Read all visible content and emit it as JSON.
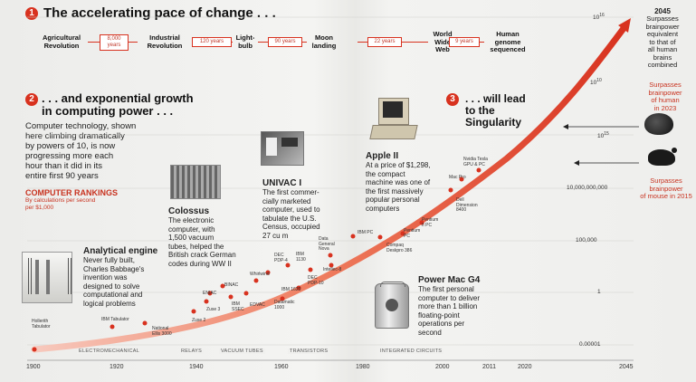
{
  "colors": {
    "accent": "#d8321f",
    "text": "#222222",
    "muted": "#666666"
  },
  "section1": {
    "number": "1",
    "title": "The accelerating pace of change . . .",
    "milestones": [
      {
        "line1": "Agricultural",
        "line2": "Revolution",
        "line3": ""
      },
      {
        "line1": "Industrial",
        "line2": "Revolution",
        "line3": ""
      },
      {
        "line1": "Light-",
        "line2": "bulb",
        "line3": ""
      },
      {
        "line1": "Moon",
        "line2": "landing",
        "line3": ""
      },
      {
        "line1": "World",
        "line2": "Wide",
        "line3": "Web"
      },
      {
        "line1": "Human",
        "line2": "genome",
        "line3": "sequenced"
      }
    ],
    "gaps": [
      {
        "line1": "8,000",
        "line2": "years"
      },
      {
        "line1": "120 years",
        "line2": ""
      },
      {
        "line1": "90 years",
        "line2": ""
      },
      {
        "line1": "22 years",
        "line2": ""
      },
      {
        "line1": "9 years",
        "line2": ""
      }
    ]
  },
  "section2": {
    "number": "2",
    "title_line1": ". . . and exponential growth",
    "title_line2": "in computing power . . .",
    "body": [
      "Computer technology, shown",
      "here climbing dramatically",
      "by powers of 10, is now",
      "progressing more each",
      "hour than it did in its",
      "entire first 90 years"
    ]
  },
  "section3": {
    "number": "3",
    "title_line1": ". . . will lead",
    "title_line2": "to the",
    "title_line3": "Singularity"
  },
  "rankings": {
    "title": "COMPUTER RANKINGS",
    "subtitle_line1": "By calculations per second",
    "subtitle_line2": "per $1,000"
  },
  "callouts": {
    "analytical": {
      "title": "Analytical engine",
      "lines": [
        "Never fully built,",
        "Charles Babbage's",
        "invention was",
        "designed to solve",
        "computational and",
        "logical problems"
      ]
    },
    "colossus": {
      "title": "Colossus",
      "lines": [
        "The electronic",
        "computer, with",
        "1,500 vacuum",
        "tubes, helped the",
        "British crack German",
        "codes during WW II"
      ]
    },
    "univac": {
      "title": "UNIVAC I",
      "lines": [
        "The first commer-",
        "cially marketed",
        "computer, used to",
        "tabulate the U.S.",
        "Census, occupied",
        "27 cu m"
      ]
    },
    "apple": {
      "title": "Apple II",
      "lines": [
        "At a price of $1,298,",
        "the compact",
        "machine was one of",
        "the first massively",
        "popular personal",
        "computers"
      ]
    },
    "powermac": {
      "title": "Power Mac G4",
      "lines": [
        "The first personal",
        "computer to deliver",
        "more than 1 billion",
        "floating-point",
        "operations per",
        "second"
      ]
    },
    "y2045": {
      "title": "2045",
      "lines": [
        "Surpasses",
        "brainpower",
        "equivalent",
        "to that of",
        "all human",
        "brains",
        "combined"
      ]
    },
    "human2023": {
      "lines": [
        "Surpasses",
        "brainpower",
        "of human",
        "in 2023"
      ]
    },
    "mouse2015": {
      "lines": [
        "Surpasses",
        "brainpower",
        "of mouse in 2015"
      ]
    }
  },
  "machines": [
    {
      "lines": [
        "Hollerith",
        "Tabulator"
      ]
    },
    {
      "lines": [
        "IBM Tabulator"
      ]
    },
    {
      "lines": [
        "National",
        "Ellis 3000"
      ]
    },
    {
      "lines": [
        "Zuse 2"
      ]
    },
    {
      "lines": [
        "Zuse 3"
      ]
    },
    {
      "lines": [
        "ENIAC"
      ]
    },
    {
      "lines": [
        "BINAC"
      ]
    },
    {
      "lines": [
        "IBM",
        "SSEC"
      ]
    },
    {
      "lines": [
        "EDVAC"
      ]
    },
    {
      "lines": [
        "Whirlwind"
      ]
    },
    {
      "lines": [
        "DEC",
        "PDP-4"
      ]
    },
    {
      "lines": [
        "IBM",
        "1130"
      ]
    },
    {
      "lines": [
        "IBM 1620"
      ]
    },
    {
      "lines": [
        "Datamatic",
        "1000"
      ]
    },
    {
      "lines": [
        "DEC",
        "PDP-10"
      ]
    },
    {
      "lines": [
        "Data",
        "General",
        "Nova"
      ]
    },
    {
      "lines": [
        "Intellec-8"
      ]
    },
    {
      "lines": [
        "IBM PC"
      ]
    },
    {
      "lines": [
        "Compaq",
        "Deskpro 386"
      ]
    },
    {
      "lines": [
        "Pentium",
        "PC"
      ]
    },
    {
      "lines": [
        "Pentium",
        "II PC"
      ]
    },
    {
      "lines": [
        "Dell",
        "Dimension",
        "8400"
      ]
    },
    {
      "lines": [
        "Mac Pro"
      ]
    },
    {
      "lines": [
        "Nvidia Tesla",
        "GPU & PC"
      ]
    }
  ],
  "yaxis": [
    {
      "label": "10",
      "sup": "16"
    },
    {
      "label": "10",
      "sup": "15"
    },
    {
      "label": "10",
      "sup": "10"
    },
    {
      "label": "10,000,000,000",
      "sup": ""
    },
    {
      "label": "100,000",
      "sup": ""
    },
    {
      "label": "1",
      "sup": ""
    },
    {
      "label": "0.00001",
      "sup": ""
    }
  ],
  "xaxis": [
    "1900",
    "1920",
    "1940",
    "1960",
    "1980",
    "2000",
    "2011",
    "2020",
    "2045"
  ],
  "eras": [
    "ELECTROMECHANICAL",
    "RELAYS",
    "VACUUM TUBES",
    "TRANSISTORS",
    "INTEGRATED CIRCUITS"
  ]
}
